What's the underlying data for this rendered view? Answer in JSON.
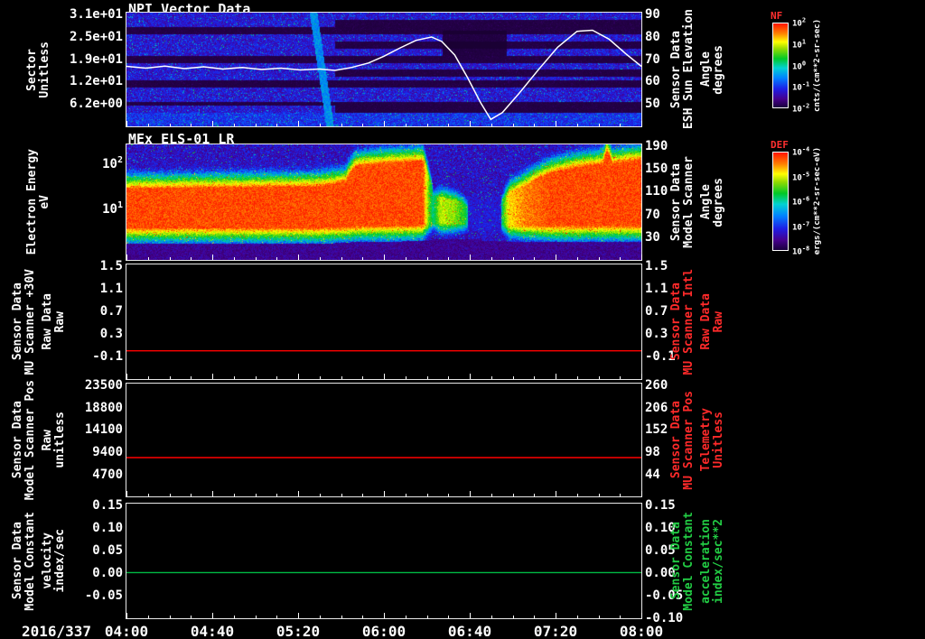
{
  "figure": {
    "background": "#000000",
    "text_color": "#ffffff"
  },
  "chart_data": {
    "type": "multi-panel-timeseries",
    "x_axis": {
      "label": "2016/337",
      "ticks": [
        "04:00",
        "04:40",
        "05:20",
        "06:00",
        "06:40",
        "07:20",
        "08:00"
      ],
      "start_hours": 4.0,
      "end_hours": 8.0
    },
    "panels": [
      {
        "id": "npi-vector-data",
        "type": "heatmap",
        "title": "NPI Vector Data",
        "left_label": [
          "Sector",
          "Unitless"
        ],
        "left_ticks": [
          "3.1e+01",
          "2.5e+01",
          "1.9e+01",
          "1.2e+01",
          "6.2e+00"
        ],
        "right_label": [
          "Sensor Data",
          "ESH Sun Elevation",
          "Angle",
          "degrees"
        ],
        "right_ticks": [
          "90",
          "80",
          "70",
          "60",
          "50"
        ],
        "right_range": [
          40.4,
          90.8
        ],
        "colorbar": {
          "name": "NF",
          "unit": "cnts/(cm**2-sr-sec)",
          "ticks": [
            "10^2",
            "10^1",
            "10^0",
            "10^-1",
            "10^-2"
          ]
        },
        "overlay_line": {
          "name": "ESH Sun Elevation Angle",
          "units": "degrees",
          "color": "#ffffff",
          "t": [
            4.0,
            4.15,
            4.3,
            4.45,
            4.6,
            4.75,
            4.9,
            5.05,
            5.2,
            5.35,
            5.5,
            5.62,
            5.75,
            5.88,
            6.0,
            6.12,
            6.25,
            6.37,
            6.45,
            6.55,
            6.65,
            6.75,
            6.83,
            6.92,
            7.05,
            7.2,
            7.35,
            7.5,
            7.62,
            7.75,
            7.88,
            8.0
          ],
          "v": [
            67,
            66.2,
            67.1,
            66,
            66.8,
            65.8,
            66.5,
            65.6,
            66.2,
            65.4,
            65.8,
            65.2,
            66.5,
            68.5,
            71.5,
            75,
            78.5,
            80,
            78,
            72,
            62,
            51,
            43.5,
            46.5,
            55,
            65.5,
            75.5,
            82.5,
            83,
            79,
            72.5,
            67
          ]
        },
        "heatmap_features": {
          "sector_rows": 32,
          "dark_sector_rows": [
            4,
            5,
            12,
            13,
            19,
            20,
            25
          ],
          "extra_dark_after_t": 5.62,
          "extra_dark_rows": [
            2,
            3,
            8,
            9,
            16,
            17,
            26,
            27
          ],
          "bright_streak_t": 5.45,
          "black_patch": {
            "t0": 6.45,
            "t1": 6.95,
            "row0": 5,
            "row1": 11
          }
        }
      },
      {
        "id": "mex-els-01-lr",
        "type": "heatmap",
        "title": "MEx ELS-01 LR",
        "left_label": [
          "Electron Energy",
          "eV"
        ],
        "left_ticks": [
          "10^2",
          "10^1"
        ],
        "energy_range_ev": [
          0.7,
          250
        ],
        "right_label": [
          "Sensor Data",
          "Model Scanner",
          "Angle",
          "degrees"
        ],
        "right_ticks": [
          "190",
          "150",
          "110",
          "70",
          "30"
        ],
        "colorbar": {
          "name": "DEF",
          "unit": "ergs/(cm**2-sr-sec-eV)",
          "ticks": [
            "10^-4",
            "10^-5",
            "10^-6",
            "10^-7",
            "10^-8"
          ]
        },
        "band_envelope": {
          "t": [
            4.0,
            5.5,
            5.7,
            5.78,
            6.05,
            6.3,
            6.34,
            6.38,
            6.44,
            6.55,
            6.62,
            6.66,
            6.7,
            6.78,
            6.9,
            6.97,
            7.1,
            7.3,
            7.55,
            7.7,
            7.73,
            7.77,
            7.8,
            8.0
          ],
          "e_low": [
            3.6,
            3.6,
            3.8,
            4.0,
            4.0,
            4.2,
            4.2,
            4.5,
            4.5,
            4.5,
            4.5,
            4.5,
            4.5,
            4.2,
            4.2,
            4.0,
            4.0,
            4.0,
            4.0,
            4.0,
            4.0,
            4.0,
            4.0,
            4.0
          ],
          "e_high": [
            27,
            30,
            38,
            85,
            100,
            110,
            60,
            18,
            17,
            15,
            12,
            10,
            10,
            11,
            12,
            22,
            32,
            60,
            85,
            95,
            190,
            95,
            100,
            120
          ],
          "intensity": [
            1,
            1,
            1,
            1,
            1,
            1,
            0.5,
            0.2,
            0.6,
            0.5,
            0.35,
            0.1,
            0.08,
            0.1,
            0.1,
            0.75,
            0.9,
            1,
            1,
            1,
            1,
            1,
            1,
            1
          ]
        }
      },
      {
        "id": "mu-scanner-30v",
        "type": "line",
        "left_label": [
          "Sensor Data",
          "MU Scanner +30V",
          "Raw Data",
          "Raw"
        ],
        "left_ticks": [
          "1.5",
          "1.1",
          "0.7",
          "0.3",
          "-0.1"
        ],
        "right_label": [
          "Sensor Data",
          "MU Scanner Intl",
          "Raw Data",
          "Raw"
        ],
        "right_ticks": [
          "1.5",
          "1.1",
          "0.7",
          "0.3",
          "-0.1"
        ],
        "label_color": "#ff2a2a",
        "y_range": [
          -0.5,
          1.53
        ],
        "series": [
          {
            "name": "MU Scanner +30V Raw",
            "color": "#ff0000",
            "value": 0.0
          }
        ]
      },
      {
        "id": "model-scanner-pos",
        "type": "line",
        "left_label": [
          "Sensor Data",
          "Model Scanner Pos",
          "Raw",
          "unitless"
        ],
        "left_ticks": [
          "23500",
          "18800",
          "14100",
          "9400",
          "4700"
        ],
        "right_label": [
          "Sensor Data",
          "MU Scanner Pos",
          "Telemetry",
          "Unitless"
        ],
        "right_ticks": [
          "260",
          "206",
          "152",
          "98",
          "44"
        ],
        "label_color": "#ff2a2a",
        "y_range": [
          600,
          23870
        ],
        "series": [
          {
            "name": "Model Scanner Pos Raw",
            "color": "#ff0000",
            "value": 8600
          }
        ]
      },
      {
        "id": "model-constant-velocity",
        "type": "line",
        "left_label": [
          "Sensor Data",
          "Model Constant",
          "velocity",
          "index/sec"
        ],
        "left_ticks": [
          "0.15",
          "0.10",
          "0.05",
          "0.00",
          "-0.05"
        ],
        "right_label": [
          "Sensor Data",
          "Model Constant",
          "acceleration",
          "index/sec**2"
        ],
        "right_ticks": [
          "0.15",
          "0.10",
          "0.05",
          "0.00",
          "-0.05",
          "-0.10"
        ],
        "label_color": "#22cc44",
        "y_range": [
          -0.102,
          0.154
        ],
        "series": [
          {
            "name": "Model Constant velocity",
            "color": "#00bb44",
            "value": 0.0
          }
        ]
      }
    ]
  }
}
